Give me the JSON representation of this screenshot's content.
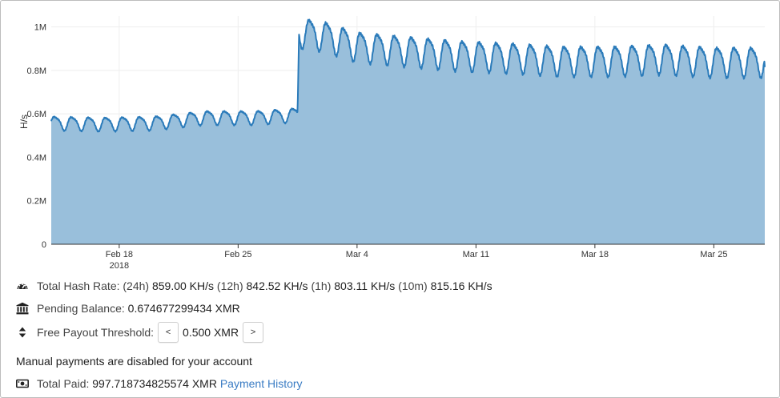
{
  "chart_data": {
    "type": "area",
    "ylabel": "H/s",
    "ylim": [
      0,
      1050000
    ],
    "yticks": [
      {
        "value": 0,
        "label": "0"
      },
      {
        "value": 200000,
        "label": "0.2M"
      },
      {
        "value": 400000,
        "label": "0.4M"
      },
      {
        "value": 600000,
        "label": "0.6M"
      },
      {
        "value": 800000,
        "label": "0.8M"
      },
      {
        "value": 1000000,
        "label": "1M"
      }
    ],
    "xrange": [
      "2018-02-14",
      "2018-03-28"
    ],
    "xticks": [
      {
        "date": "2018-02-18",
        "label": "Feb 18",
        "sublabel": "2018"
      },
      {
        "date": "2018-02-25",
        "label": "Feb 25",
        "sublabel": ""
      },
      {
        "date": "2018-03-04",
        "label": "Mar 4",
        "sublabel": ""
      },
      {
        "date": "2018-03-11",
        "label": "Mar 11",
        "sublabel": ""
      },
      {
        "date": "2018-03-18",
        "label": "Mar 18",
        "sublabel": ""
      },
      {
        "date": "2018-03-25",
        "label": "Mar 25",
        "sublabel": ""
      }
    ],
    "grid": true,
    "colors": {
      "line": "#2b7bba",
      "fill": "#99bfdb",
      "grid": "#eeeeee",
      "axis": "#333333"
    },
    "series": [
      {
        "name": "",
        "baseline_points": [
          {
            "x": "2018-02-14T00:00",
            "y": 560000
          },
          {
            "x": "2018-02-17T00:00",
            "y": 555000
          },
          {
            "x": "2018-02-20T00:00",
            "y": 560000
          },
          {
            "x": "2018-02-23T00:00",
            "y": 585000
          },
          {
            "x": "2018-02-26T00:00",
            "y": 585000
          },
          {
            "x": "2018-02-28T00:00",
            "y": 595000
          },
          {
            "x": "2018-02-28T12:00",
            "y": 600000
          },
          {
            "x": "2018-02-28T14:00",
            "y": 980000
          },
          {
            "x": "2018-03-01T00:00",
            "y": 975000
          },
          {
            "x": "2018-03-02T00:00",
            "y": 965000
          },
          {
            "x": "2018-03-04T00:00",
            "y": 915000
          },
          {
            "x": "2018-03-07T00:00",
            "y": 895000
          },
          {
            "x": "2018-03-10T00:00",
            "y": 875000
          },
          {
            "x": "2018-03-13T00:00",
            "y": 865000
          },
          {
            "x": "2018-03-16T00:00",
            "y": 850000
          },
          {
            "x": "2018-03-19T00:00",
            "y": 850000
          },
          {
            "x": "2018-03-22T00:00",
            "y": 860000
          },
          {
            "x": "2018-03-25T00:00",
            "y": 845000
          },
          {
            "x": "2018-03-28T00:00",
            "y": 845000
          }
        ],
        "daily_swing": {
          "before": 30000,
          "after": 65000
        },
        "end_value": 815000
      }
    ]
  },
  "stats": {
    "hashrate": {
      "label": "Total Hash Rate:",
      "p24h_label": "(24h)",
      "p24h_value": "859.00 KH/s",
      "p12h_label": "(12h)",
      "p12h_value": "842.52 KH/s",
      "p1h_label": "(1h)",
      "p1h_value": "803.11 KH/s",
      "p10m_label": "(10m)",
      "p10m_value": "815.16 KH/s"
    },
    "pending": {
      "label": "Pending Balance:",
      "value": "0.674677299434 XMR"
    },
    "threshold": {
      "label": "Free Payout Threshold:",
      "dec": "<",
      "value": "0.500 XMR",
      "inc": ">"
    },
    "manual_notice": "Manual payments are disabled for your account",
    "paid": {
      "label": "Total Paid:",
      "value": "997.718734825574 XMR",
      "history_link": "Payment History"
    }
  },
  "icons": {
    "hashrate": "tachometer-icon",
    "pending": "bank-icon",
    "threshold": "sort-icon",
    "paid": "money-icon"
  }
}
